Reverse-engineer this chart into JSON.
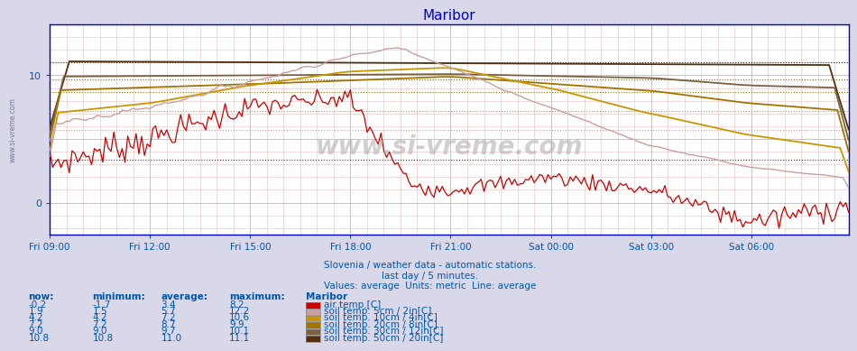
{
  "title": "Maribor",
  "title_color": "#0000cc",
  "bg_color": "#d8d8e8",
  "plot_bg_color": "#ffffff",
  "grid_color_major": "#c8c8c8",
  "grid_minor_v": "#e8c8c8",
  "grid_minor_h": "#e8c8c8",
  "axis_color": "#0000cc",
  "tick_color": "#0055aa",
  "text_color": "#0055aa",
  "watermark": "www.si-vreme.com",
  "subtitle1": "Slovenia / weather data - automatic stations.",
  "subtitle2": "last day / 5 minutes.",
  "subtitle3": "Values: average  Units: metric  Line: average",
  "xticklabels": [
    "Fri 09:00",
    "Fri 12:00",
    "Fri 15:00",
    "Fri 18:00",
    "Fri 21:00",
    "Sat 00:00",
    "Sat 03:00",
    "Sat 06:00"
  ],
  "xtick_positions": [
    0,
    36,
    72,
    108,
    144,
    180,
    216,
    252
  ],
  "n_points": 288,
  "ylim": [
    -2.5,
    14
  ],
  "yticks": [
    0,
    10
  ],
  "legend_items": [
    {
      "label": "air temp.[C]",
      "color": "#cc0000",
      "now": "-0.2",
      "min": "-1.7",
      "avg": "3.4",
      "max": "8.2"
    },
    {
      "label": "soil temp. 5cm / 2in[C]",
      "color": "#c8a0a0",
      "now": "1.9",
      "min": "1.5",
      "avg": "5.7",
      "max": "12.2"
    },
    {
      "label": "soil temp. 10cm / 4in[C]",
      "color": "#c89600",
      "now": "4.2",
      "min": "4.2",
      "avg": "7.2",
      "max": "10.6"
    },
    {
      "label": "soil temp. 20cm / 8in[C]",
      "color": "#a07400",
      "now": "7.2",
      "min": "7.2",
      "avg": "8.7",
      "max": "9.9"
    },
    {
      "label": "soil temp. 30cm / 12in[C]",
      "color": "#786040",
      "now": "9.0",
      "min": "9.0",
      "avg": "9.7",
      "max": "10.1"
    },
    {
      "label": "soil temp. 50cm / 20in[C]",
      "color": "#503010",
      "now": "10.8",
      "min": "10.8",
      "avg": "11.0",
      "max": "11.1"
    }
  ],
  "label_header": [
    "now:",
    "minimum:",
    "average:",
    "maximum:",
    "Maribor"
  ]
}
